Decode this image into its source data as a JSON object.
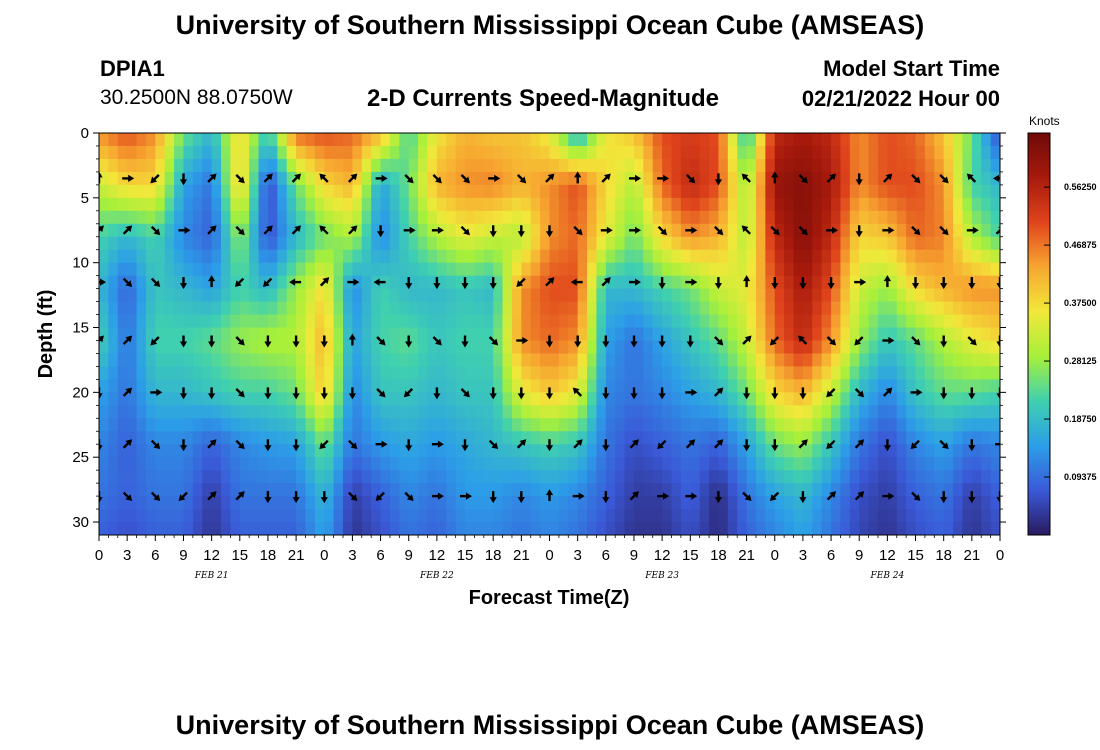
{
  "header": {
    "title": "University of Southern Mississippi Ocean Cube (AMSEAS)",
    "station": "DPIA1",
    "coords": "30.2500N  88.0750W",
    "subtitle": "2-D Currents Speed-Magnitude",
    "model_label": "Model Start Time",
    "model_time": "02/21/2022 Hour 00"
  },
  "footer": {
    "title": "University of Southern Mississippi Ocean Cube (AMSEAS)"
  },
  "colors": {
    "scale": [
      "#2a1a5e",
      "#3a5ad8",
      "#2c9ee8",
      "#3fd0b0",
      "#a6f03a",
      "#f2e83a",
      "#f7a630",
      "#e0441c",
      "#a81a0c",
      "#6e0a08"
    ]
  },
  "chart_data": {
    "type": "heatmap",
    "title": "2-D Currents Speed-Magnitude",
    "xlabel": "Forecast Time(Z)",
    "ylabel": "Depth (ft)",
    "xlim": [
      0,
      96
    ],
    "ylim": [
      31,
      0
    ],
    "x_tick_labels": [
      "0",
      "3",
      "6",
      "9",
      "12",
      "15",
      "18",
      "21",
      "0",
      "3",
      "6",
      "9",
      "12",
      "15",
      "18",
      "21",
      "0",
      "3",
      "6",
      "9",
      "12",
      "15",
      "18",
      "21",
      "0",
      "3",
      "6",
      "9",
      "12",
      "15",
      "18",
      "21",
      "0"
    ],
    "y_ticks": [
      0,
      5,
      10,
      15,
      20,
      25,
      30
    ],
    "date_labels": [
      {
        "label": "FEB 21",
        "hour": 12
      },
      {
        "label": "FEB 22",
        "hour": 36
      },
      {
        "label": "FEB 23",
        "hour": 60
      },
      {
        "label": "FEB 24",
        "hour": 84
      }
    ],
    "colorbar": {
      "title": "Knots",
      "range": [
        0,
        0.65
      ],
      "tick_values": [
        0.09375,
        0.1875,
        0.28125,
        0.375,
        0.46875,
        0.5625
      ],
      "tick_labels": [
        "0.09375",
        "0.18750",
        "0.28125",
        "0.37500",
        "0.46875",
        "0.56250"
      ]
    },
    "depths": [
      0,
      4,
      8,
      12,
      16,
      20,
      24,
      28,
      31
    ],
    "times": [
      0,
      3,
      6,
      9,
      12,
      15,
      18,
      21,
      24,
      27,
      30,
      33,
      36,
      39,
      42,
      45,
      48,
      51,
      54,
      57,
      60,
      63,
      66,
      69,
      72,
      75,
      78,
      81,
      84,
      87,
      90,
      93,
      96
    ],
    "speed": [
      [
        0.45,
        0.5,
        0.45,
        0.25,
        0.18,
        0.38,
        0.2,
        0.48,
        0.5,
        0.48,
        0.42,
        0.22,
        0.36,
        0.42,
        0.4,
        0.4,
        0.35,
        0.16,
        0.36,
        0.4,
        0.5,
        0.52,
        0.5,
        0.18,
        0.55,
        0.58,
        0.55,
        0.45,
        0.5,
        0.48,
        0.4,
        0.25,
        0.05
      ],
      [
        0.32,
        0.38,
        0.38,
        0.15,
        0.1,
        0.4,
        0.05,
        0.25,
        0.38,
        0.42,
        0.15,
        0.25,
        0.42,
        0.45,
        0.46,
        0.42,
        0.45,
        0.5,
        0.38,
        0.3,
        0.48,
        0.55,
        0.5,
        0.28,
        0.6,
        0.62,
        0.58,
        0.45,
        0.5,
        0.5,
        0.45,
        0.22,
        0.18
      ],
      [
        0.22,
        0.18,
        0.22,
        0.12,
        0.08,
        0.28,
        0.06,
        0.18,
        0.25,
        0.3,
        0.12,
        0.22,
        0.3,
        0.35,
        0.32,
        0.3,
        0.45,
        0.48,
        0.35,
        0.25,
        0.38,
        0.45,
        0.42,
        0.3,
        0.55,
        0.62,
        0.55,
        0.38,
        0.4,
        0.48,
        0.46,
        0.3,
        0.22
      ],
      [
        0.18,
        0.08,
        0.2,
        0.18,
        0.15,
        0.22,
        0.18,
        0.28,
        0.38,
        0.12,
        0.22,
        0.18,
        0.18,
        0.2,
        0.18,
        0.45,
        0.5,
        0.5,
        0.18,
        0.18,
        0.22,
        0.25,
        0.32,
        0.35,
        0.5,
        0.58,
        0.5,
        0.32,
        0.28,
        0.38,
        0.42,
        0.45,
        0.45
      ],
      [
        0.22,
        0.1,
        0.22,
        0.22,
        0.24,
        0.28,
        0.3,
        0.3,
        0.42,
        0.15,
        0.22,
        0.24,
        0.2,
        0.22,
        0.22,
        0.45,
        0.48,
        0.45,
        0.15,
        0.1,
        0.15,
        0.2,
        0.24,
        0.32,
        0.48,
        0.55,
        0.45,
        0.28,
        0.2,
        0.24,
        0.3,
        0.35,
        0.38
      ],
      [
        0.15,
        0.1,
        0.18,
        0.18,
        0.2,
        0.22,
        0.22,
        0.25,
        0.4,
        0.12,
        0.2,
        0.2,
        0.18,
        0.2,
        0.2,
        0.35,
        0.4,
        0.35,
        0.12,
        0.1,
        0.12,
        0.15,
        0.18,
        0.25,
        0.38,
        0.42,
        0.32,
        0.18,
        0.12,
        0.2,
        0.24,
        0.24,
        0.22
      ],
      [
        0.12,
        0.08,
        0.12,
        0.12,
        0.08,
        0.12,
        0.14,
        0.15,
        0.25,
        0.1,
        0.14,
        0.16,
        0.14,
        0.16,
        0.18,
        0.2,
        0.22,
        0.2,
        0.1,
        0.06,
        0.08,
        0.1,
        0.08,
        0.15,
        0.25,
        0.28,
        0.2,
        0.1,
        0.06,
        0.12,
        0.15,
        0.1,
        0.12
      ],
      [
        0.1,
        0.08,
        0.1,
        0.1,
        0.04,
        0.1,
        0.1,
        0.1,
        0.18,
        0.04,
        0.08,
        0.12,
        0.1,
        0.14,
        0.14,
        0.12,
        0.14,
        0.12,
        0.08,
        0.04,
        0.04,
        0.08,
        0.02,
        0.1,
        0.15,
        0.18,
        0.12,
        0.06,
        0.04,
        0.08,
        0.1,
        0.04,
        0.08
      ],
      [
        0.08,
        0.06,
        0.08,
        0.08,
        0.03,
        0.08,
        0.08,
        0.08,
        0.15,
        0.03,
        0.06,
        0.1,
        0.08,
        0.12,
        0.12,
        0.1,
        0.12,
        0.1,
        0.06,
        0.03,
        0.03,
        0.06,
        0.02,
        0.08,
        0.12,
        0.15,
        0.1,
        0.05,
        0.03,
        0.06,
        0.08,
        0.03,
        0.06
      ]
    ],
    "vector_depths": [
      3.5,
      7.5,
      11.5,
      16,
      20,
      24,
      28
    ],
    "vector_directions_deg": [
      [
        -90,
        0,
        135,
        90,
        -45,
        45,
        -45,
        -45,
        -135,
        -45,
        0,
        45,
        45,
        45,
        0,
        45,
        -45,
        -90,
        -45,
        0,
        0,
        45,
        90,
        -135,
        -90,
        45,
        -45,
        90,
        -45,
        45,
        45,
        -135,
        -180
      ],
      [
        -45,
        -45,
        45,
        0,
        -45,
        45,
        -45,
        -45,
        -135,
        -45,
        90,
        0,
        0,
        45,
        90,
        90,
        90,
        45,
        0,
        0,
        45,
        0,
        45,
        -135,
        45,
        45,
        0,
        90,
        0,
        45,
        45,
        0,
        -45
      ],
      [
        0,
        45,
        45,
        90,
        -90,
        135,
        135,
        180,
        -45,
        0,
        180,
        90,
        90,
        90,
        90,
        135,
        -45,
        180,
        -45,
        0,
        90,
        0,
        90,
        -90,
        90,
        90,
        90,
        0,
        -90,
        90,
        90,
        90,
        90
      ],
      [
        -45,
        -45,
        135,
        90,
        90,
        45,
        90,
        90,
        90,
        -90,
        45,
        90,
        45,
        90,
        45,
        0,
        90,
        90,
        90,
        90,
        90,
        90,
        45,
        -45,
        135,
        -135,
        45,
        135,
        0,
        45,
        90,
        45,
        90
      ],
      [
        90,
        -45,
        0,
        90,
        90,
        45,
        90,
        90,
        90,
        90,
        45,
        135,
        90,
        45,
        90,
        90,
        90,
        -135,
        90,
        90,
        90,
        0,
        -45,
        90,
        90,
        90,
        135,
        45,
        -45,
        0,
        90,
        90,
        90
      ],
      [
        90,
        -45,
        45,
        90,
        -45,
        45,
        90,
        90,
        135,
        45,
        0,
        90,
        0,
        90,
        45,
        -45,
        90,
        -45,
        90,
        -45,
        135,
        -45,
        -45,
        90,
        90,
        -45,
        135,
        -45,
        90,
        135,
        45,
        90,
        0
      ],
      [
        90,
        45,
        45,
        135,
        -45,
        -45,
        90,
        90,
        90,
        45,
        135,
        45,
        0,
        0,
        90,
        90,
        -90,
        0,
        90,
        -45,
        0,
        0,
        90,
        45,
        135,
        90,
        -45,
        -45,
        0,
        45,
        90,
        90,
        90
      ]
    ]
  }
}
